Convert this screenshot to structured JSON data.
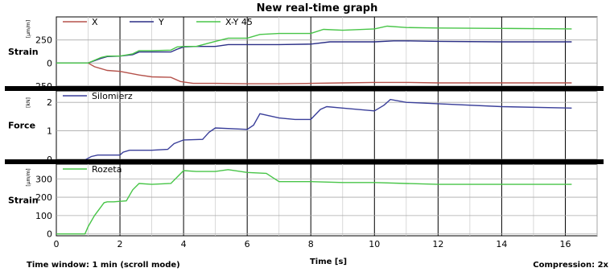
{
  "window": {
    "title": "New real-time graph",
    "time_window": "Time window: 1 min (scroll mode)",
    "compression": "Compression: 2x"
  },
  "colors": {
    "x": "#b5524b",
    "y": "#2b2f86",
    "xy45": "#48c548",
    "force": "#3a3f9a",
    "rozeta": "#48c548",
    "grid_dark": "#000000",
    "separator": "#000000"
  },
  "chart_data": [
    {
      "type": "line",
      "panel": "strain-xy",
      "ylabel": "Strain",
      "unit": "[μm/m]",
      "ylim": [
        -250,
        500
      ],
      "yticks": [
        -250,
        0,
        250
      ],
      "xlim": [
        0,
        17
      ],
      "grid": true,
      "legend_placement": "top-left",
      "series": [
        {
          "name": "X",
          "color_key": "x",
          "x": [
            0,
            1.0,
            1.2,
            1.6,
            2.0,
            2.6,
            3.0,
            3.6,
            3.9,
            4.3,
            5.0,
            6.0,
            7.0,
            8.0,
            9.0,
            10.0,
            11.0,
            12.0,
            14.0,
            16.2
          ],
          "y": [
            0,
            0,
            -40,
            -80,
            -90,
            -130,
            -150,
            -155,
            -200,
            -220,
            -220,
            -225,
            -225,
            -220,
            -215,
            -210,
            -210,
            -215,
            -215,
            -215
          ]
        },
        {
          "name": "Y",
          "color_key": "y",
          "x": [
            0,
            1.0,
            1.4,
            1.6,
            2.0,
            2.4,
            2.6,
            3.0,
            3.6,
            3.8,
            4.0,
            4.4,
            5.0,
            5.4,
            6.0,
            7.0,
            8.0,
            8.6,
            9.0,
            10.0,
            10.6,
            11.0,
            12.0,
            14.0,
            16.2
          ],
          "y": [
            0,
            0,
            50,
            70,
            75,
            90,
            120,
            120,
            120,
            150,
            175,
            180,
            180,
            200,
            200,
            200,
            205,
            230,
            230,
            230,
            240,
            240,
            235,
            230,
            230
          ]
        },
        {
          "name": "X-Y 45",
          "color_key": "xy45",
          "x": [
            0,
            1.0,
            1.4,
            1.6,
            2.0,
            2.4,
            2.6,
            3.0,
            3.6,
            3.8,
            4.0,
            4.4,
            5.0,
            5.4,
            6.0,
            6.4,
            7.0,
            8.0,
            8.4,
            9.0,
            10.0,
            10.4,
            11.0,
            12.0,
            14.0,
            16.2
          ],
          "y": [
            0,
            0,
            60,
            75,
            75,
            100,
            135,
            135,
            140,
            175,
            180,
            180,
            235,
            270,
            270,
            310,
            320,
            320,
            365,
            355,
            370,
            400,
            385,
            380,
            375,
            370
          ]
        }
      ]
    },
    {
      "type": "line",
      "panel": "force",
      "ylabel": "Force",
      "unit": "[kN]",
      "ylim": [
        0,
        2.4
      ],
      "yticks": [
        0,
        1,
        2
      ],
      "xlim": [
        0,
        17
      ],
      "grid": true,
      "legend_placement": "top-left",
      "series": [
        {
          "name": "Silomierz",
          "color_key": "force",
          "x": [
            0,
            0.9,
            1.1,
            1.3,
            2.0,
            2.1,
            2.3,
            3.0,
            3.5,
            3.7,
            4.0,
            4.6,
            4.8,
            5.0,
            6.0,
            6.2,
            6.4,
            7.0,
            7.5,
            8.0,
            8.3,
            8.5,
            9.0,
            10.0,
            10.3,
            10.5,
            11.0,
            12.0,
            14.0,
            16.2
          ],
          "y": [
            -0.02,
            -0.02,
            0.1,
            0.15,
            0.15,
            0.25,
            0.32,
            0.32,
            0.35,
            0.55,
            0.68,
            0.7,
            0.95,
            1.1,
            1.05,
            1.2,
            1.6,
            1.45,
            1.4,
            1.4,
            1.75,
            1.85,
            1.8,
            1.7,
            1.9,
            2.1,
            2.0,
            1.95,
            1.85,
            1.8
          ]
        }
      ]
    },
    {
      "type": "line",
      "panel": "strain-rozeta",
      "ylabel": "Strain",
      "unit": "[μm/m]",
      "ylim": [
        -10,
        380
      ],
      "yticks": [
        0,
        100,
        200,
        300
      ],
      "xlim": [
        0,
        17
      ],
      "xticks": [
        0,
        2,
        4,
        6,
        8,
        10,
        12,
        14,
        16
      ],
      "xlabel": "Time [s]",
      "grid": true,
      "legend_placement": "top-left",
      "series": [
        {
          "name": "Rozeta",
          "color_key": "rozeta",
          "x": [
            0,
            0.9,
            1.0,
            1.2,
            1.5,
            1.6,
            1.8,
            2.2,
            2.4,
            2.6,
            3.0,
            3.6,
            3.8,
            4.0,
            4.4,
            5.0,
            5.4,
            6.0,
            6.6,
            7.0,
            8.0,
            9.0,
            10.0,
            11.0,
            12.0,
            14.0,
            16.2
          ],
          "y": [
            0,
            0,
            40,
            100,
            170,
            175,
            175,
            180,
            240,
            275,
            270,
            275,
            310,
            345,
            340,
            340,
            350,
            335,
            330,
            285,
            285,
            280,
            280,
            275,
            270,
            270,
            270
          ]
        }
      ]
    }
  ]
}
